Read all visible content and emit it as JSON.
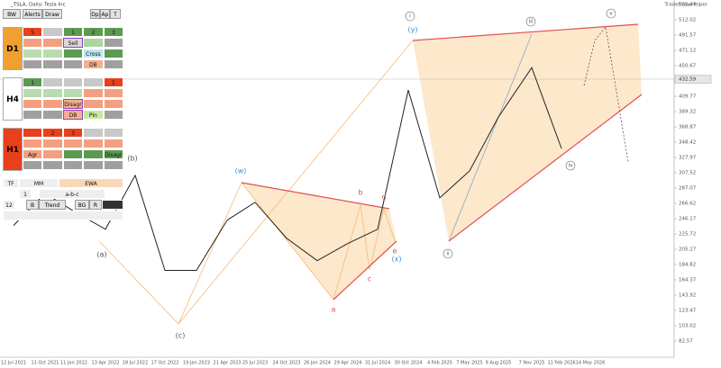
{
  "header": {
    "title": "_TSLA, Daily: Tesla Inc",
    "plugin": "TradeDrawHelper"
  },
  "panel": {
    "buttons": [
      "BW",
      "Alerts",
      "Draw",
      "Dp",
      "Ap",
      "T"
    ],
    "blocks": [
      {
        "label": "D1",
        "color": "#f0a030",
        "rows": [
          [
            {
              "color": "#e8401c",
              "text": "5"
            },
            {
              "color": "#c8c8c8"
            },
            {
              "color": "#5c9a52",
              "text": "1"
            },
            {
              "color": "#5c9a52",
              "text": "2"
            },
            {
              "color": "#5c9a52",
              "text": "3"
            }
          ],
          [
            {
              "color": "#f4a080"
            },
            {
              "color": "#f4a080"
            },
            {
              "color": "#d8d8d8",
              "text": "Sell",
              "border": "#9040c0"
            },
            {
              "color": "#a8d8a0"
            },
            {
              "color": "#a0a0a0"
            }
          ],
          [
            {
              "color": "#b8dcb0"
            },
            {
              "color": "#b8dcb0"
            },
            {
              "color": "#5c9a52"
            },
            {
              "color": "#bfe6f0",
              "text": "Cross"
            },
            {
              "color": "#5c9a52"
            }
          ],
          [
            {
              "color": "#a0a0a0"
            },
            {
              "color": "#a0a0a0"
            },
            {
              "color": "#a0a0a0"
            },
            {
              "color": "#f4b090",
              "text": "DB"
            },
            {
              "color": "#a0a0a0"
            }
          ]
        ]
      },
      {
        "label": "H4",
        "color": "#ffffff",
        "rows": [
          [
            {
              "color": "#5c9a52",
              "text": "1"
            },
            {
              "color": "#c8c8c8"
            },
            {
              "color": "#c8c8c8"
            },
            {
              "color": "#c8c8c8"
            },
            {
              "color": "#e8401c",
              "text": "1"
            }
          ],
          [
            {
              "color": "#b8dcb0"
            },
            {
              "color": "#b8dcb0"
            },
            {
              "color": "#b8dcb0"
            },
            {
              "color": "#f4a080"
            },
            {
              "color": "#f4a080"
            }
          ],
          [
            {
              "color": "#f4a080"
            },
            {
              "color": "#f4a080"
            },
            {
              "color": "#f4b090",
              "text": "Disagr",
              "border": "#9040c0"
            },
            {
              "color": "#f4a080"
            },
            {
              "color": "#f4a080"
            }
          ],
          [
            {
              "color": "#a0a0a0"
            },
            {
              "color": "#a0a0a0"
            },
            {
              "color": "#f4b090",
              "text": "DB",
              "border": "#9040c0"
            },
            {
              "color": "#c8e8a0",
              "text": "Pin"
            },
            {
              "color": "#a0a0a0"
            }
          ]
        ]
      },
      {
        "label": "H1",
        "color": "#e8401c",
        "rows": [
          [
            {
              "color": "#e8401c"
            },
            {
              "color": "#e8401c",
              "text": "2"
            },
            {
              "color": "#e8401c",
              "text": "3"
            },
            {
              "color": "#c8c8c8"
            },
            {
              "color": "#c8c8c8"
            }
          ],
          [
            {
              "color": "#f4a080"
            },
            {
              "color": "#f4a080"
            },
            {
              "color": "#f4a080"
            },
            {
              "color": "#f4a080"
            },
            {
              "color": "#f4a080"
            }
          ],
          [
            {
              "color": "#f4a080",
              "text": "Agr"
            },
            {
              "color": "#f4a080"
            },
            {
              "color": "#5c9a52"
            },
            {
              "color": "#5c9a52"
            },
            {
              "color": "#5c9a52",
              "text": "Disagr"
            }
          ],
          [
            {
              "color": "#a0a0a0"
            },
            {
              "color": "#a0a0a0"
            },
            {
              "color": "#a0a0a0"
            },
            {
              "color": "#a0a0a0"
            },
            {
              "color": "#a0a0a0"
            }
          ]
        ]
      }
    ],
    "tools": {
      "tf": "TF",
      "mm": "MM",
      "ewa": "EWA",
      "count": "1",
      "pattern": "a-b-c",
      "period": "12",
      "b": "B",
      "trend": "Trend",
      "bg": "BG",
      "r": "R"
    }
  },
  "chart_data": {
    "type": "line",
    "color": "#222222",
    "x": [
      "12 Jul 2021",
      "11 Oct 2021",
      "11 Jan 2022",
      "13 Apr 2022",
      "18 Jul 2022",
      "17 Oct 2022",
      "19 Jan 2023",
      "21 Apr 2023",
      "25 Jul 2023",
      "24 Oct 2023",
      "26 Jan 2024",
      "29 Apr 2024",
      "31 Jul 2024",
      "30 Oct 2024",
      "4 Feb 2025",
      "7 May 2025",
      "9 Aug 2025",
      "7 Nov 2025",
      "11 Feb 2026",
      "14 May 2026"
    ],
    "values": [
      237,
      280,
      256,
      232,
      304,
      177,
      177,
      244,
      268,
      220,
      190,
      213,
      232,
      418,
      274,
      310,
      382,
      448,
      340,
      null
    ],
    "ylim": [
      63.3,
      538.5
    ],
    "yticks": [
      532.47,
      512.02,
      491.57,
      471.12,
      450.67,
      430.22,
      409.77,
      389.32,
      368.87,
      348.42,
      327.97,
      307.52,
      287.07,
      266.62,
      246.17,
      225.72,
      205.27,
      184.82,
      164.37,
      143.92,
      123.47,
      103.02,
      82.57
    ],
    "last_price": 432.59,
    "annotations": [
      "(a)",
      "(b)",
      "(c)",
      "(w)",
      "(x)",
      "(y)",
      "a",
      "b",
      "c",
      "d",
      "e",
      "i",
      "ii",
      "iii",
      "iv",
      "v"
    ]
  }
}
